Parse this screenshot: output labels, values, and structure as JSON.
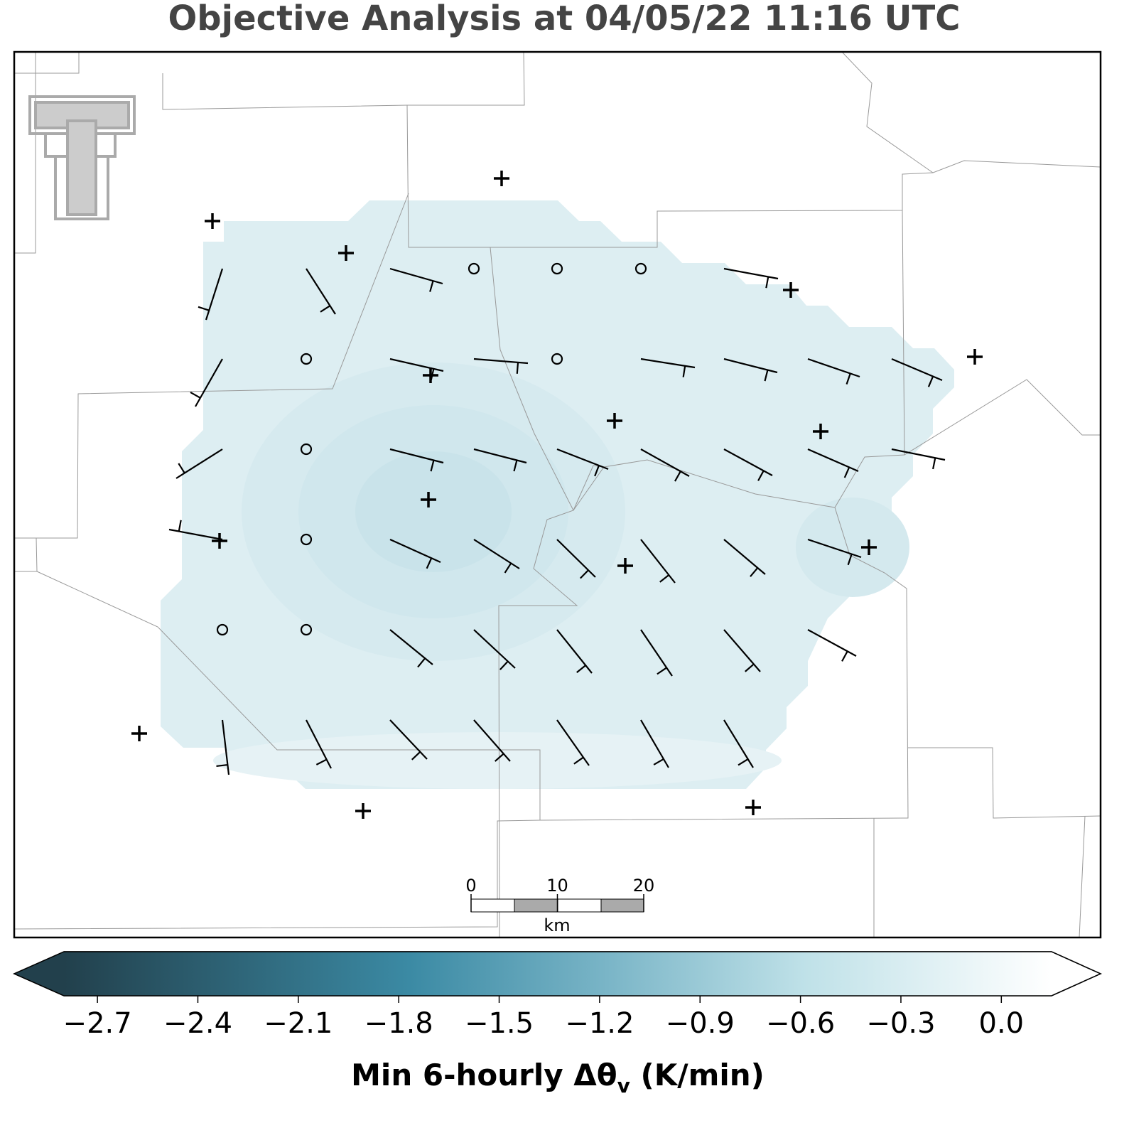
{
  "title": "Objective Analysis at 04/05/22 11:16 UTC",
  "scale_bar": {
    "ticks": [
      0,
      10,
      20
    ],
    "unit": "km"
  },
  "colorbar": {
    "lim": [
      -2.8,
      0.15
    ],
    "ticks": [
      {
        "value": -2.7,
        "label": "−2.7"
      },
      {
        "value": -2.4,
        "label": "−2.4"
      },
      {
        "value": -2.1,
        "label": "−2.1"
      },
      {
        "value": -1.8,
        "label": "−1.8"
      },
      {
        "value": -1.5,
        "label": "−1.5"
      },
      {
        "value": -1.2,
        "label": "−1.2"
      },
      {
        "value": -0.9,
        "label": "−0.9"
      },
      {
        "value": -0.6,
        "label": "−0.6"
      },
      {
        "value": -0.3,
        "label": "−0.3"
      },
      {
        "value": 0.0,
        "label": "0.0"
      }
    ],
    "label_main": "Min 6-hourly Δθ",
    "label_sub": "v",
    "label_unit": " (K/min)"
  }
}
